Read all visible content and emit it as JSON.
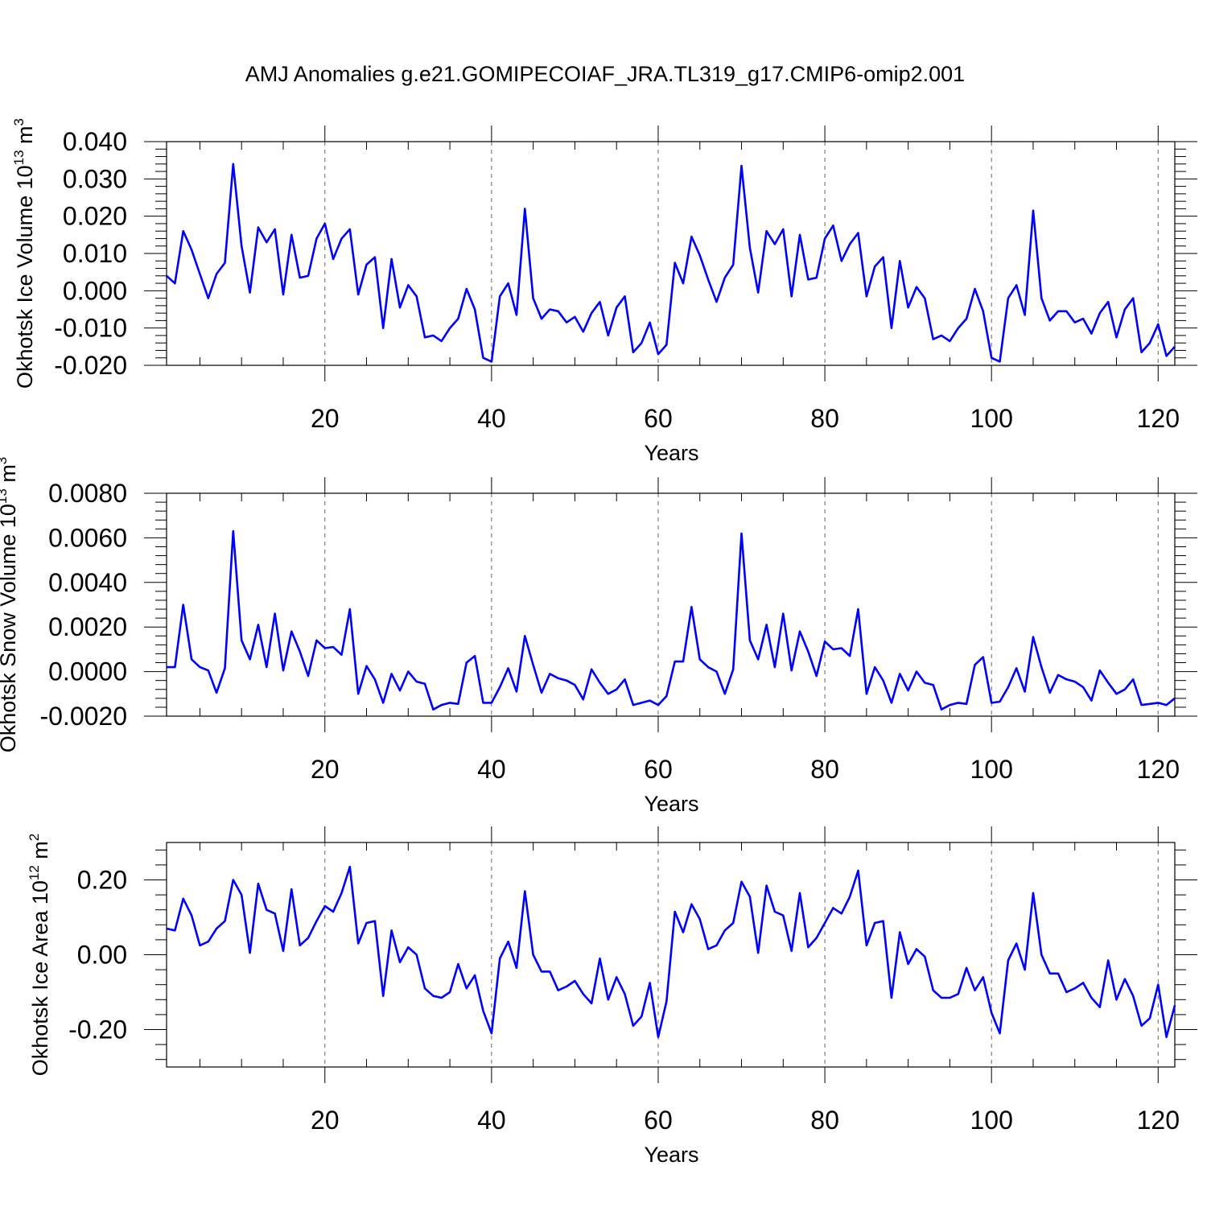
{
  "figure": {
    "title": "AMJ Anomalies g.e21.GOMIPECOIAF_JRA.TL319_g17.CMIP6-omip2.001",
    "line_color": "#0000ff"
  },
  "chart_data": [
    {
      "type": "line",
      "title": "",
      "xlabel": "Years",
      "ylabel": "Okhotsk Ice Volume 10",
      "ylabel_exp": "13",
      "ylabel_unit": " m",
      "ylabel_unit_exp": "3",
      "xlim": [
        1,
        122
      ],
      "ylim": [
        -0.02,
        0.04
      ],
      "xticks": [
        20,
        40,
        60,
        80,
        100,
        120
      ],
      "yticks": [
        -0.02,
        -0.01,
        0.0,
        0.01,
        0.02,
        0.03,
        0.04
      ],
      "ytick_labels": [
        "-0.020",
        "-0.010",
        "0.000",
        "0.010",
        "0.020",
        "0.030",
        "0.040"
      ],
      "series": [
        {
          "name": "Okhotsk Ice Volume",
          "x": [
            1,
            2,
            3,
            4,
            5,
            6,
            7,
            8,
            9,
            10,
            11,
            12,
            13,
            14,
            15,
            16,
            17,
            18,
            19,
            20,
            21,
            22,
            23,
            24,
            25,
            26,
            27,
            28,
            29,
            30,
            31,
            32,
            33,
            34,
            35,
            36,
            37,
            38,
            39,
            40,
            41,
            42,
            43,
            44,
            45,
            46,
            47,
            48,
            49,
            50,
            51,
            52,
            53,
            54,
            55,
            56,
            57,
            58,
            59,
            60,
            61,
            62,
            63,
            64,
            65,
            66,
            67,
            68,
            69,
            70,
            71,
            72,
            73,
            74,
            75,
            76,
            77,
            78,
            79,
            80,
            81,
            82,
            83,
            84,
            85,
            86,
            87,
            88,
            89,
            90,
            91,
            92,
            93,
            94,
            95,
            96,
            97,
            98,
            99,
            100,
            101,
            102,
            103,
            104,
            105,
            106,
            107,
            108,
            109,
            110,
            111,
            112,
            113,
            114,
            115,
            116,
            117,
            118,
            119,
            120,
            121,
            122
          ],
          "values": [
            0.004,
            0.002,
            0.016,
            0.011,
            0.0045,
            -0.002,
            0.0045,
            0.0075,
            0.034,
            0.012,
            -0.0005,
            0.017,
            0.013,
            0.0165,
            -0.001,
            0.015,
            0.0035,
            0.004,
            0.014,
            0.018,
            0.0085,
            0.014,
            0.0165,
            -0.001,
            0.007,
            0.009,
            -0.01,
            0.0085,
            -0.0045,
            0.0015,
            -0.0015,
            -0.0125,
            -0.012,
            -0.0135,
            -0.01,
            -0.0075,
            0.0005,
            -0.005,
            -0.018,
            -0.019,
            -0.0015,
            0.002,
            -0.0065,
            0.022,
            -0.002,
            -0.0075,
            -0.005,
            -0.0055,
            -0.0085,
            -0.007,
            -0.011,
            -0.006,
            -0.003,
            -0.012,
            -0.0045,
            -0.0015,
            -0.0165,
            -0.014,
            -0.0085,
            -0.017,
            -0.0145,
            0.0075,
            0.002,
            0.0145,
            0.0095,
            0.003,
            -0.003,
            0.0035,
            0.007,
            0.0335,
            0.0115,
            -0.0005,
            0.016,
            0.0125,
            0.0165,
            -0.0015,
            0.015,
            0.003,
            0.0035,
            0.014,
            0.0175,
            0.008,
            0.0125,
            0.0155,
            -0.0015,
            0.0065,
            0.009,
            -0.01,
            0.008,
            -0.0045,
            0.001,
            -0.002,
            -0.013,
            -0.012,
            -0.0135,
            -0.01,
            -0.0075,
            0.0005,
            -0.0055,
            -0.018,
            -0.019,
            -0.002,
            0.0015,
            -0.0065,
            0.0215,
            -0.002,
            -0.008,
            -0.0055,
            -0.0055,
            -0.0085,
            -0.0075,
            -0.0115,
            -0.006,
            -0.003,
            -0.0125,
            -0.005,
            -0.002,
            -0.0165,
            -0.014,
            -0.009,
            -0.0175,
            -0.015
          ]
        }
      ]
    },
    {
      "type": "line",
      "title": "",
      "xlabel": "Years",
      "ylabel": "Okhotsk Snow Volume 10",
      "ylabel_exp": "13",
      "ylabel_unit": " m",
      "ylabel_unit_exp": "3",
      "xlim": [
        1,
        122
      ],
      "ylim": [
        -0.002,
        0.008
      ],
      "xticks": [
        20,
        40,
        60,
        80,
        100,
        120
      ],
      "yticks": [
        -0.002,
        0.0,
        0.002,
        0.004,
        0.006,
        0.008
      ],
      "ytick_labels": [
        "-0.0020",
        "0.0000",
        "0.0020",
        "0.0040",
        "0.0060",
        "0.0080"
      ],
      "series": [
        {
          "name": "Okhotsk Snow Volume",
          "x": [
            1,
            2,
            3,
            4,
            5,
            6,
            7,
            8,
            9,
            10,
            11,
            12,
            13,
            14,
            15,
            16,
            17,
            18,
            19,
            20,
            21,
            22,
            23,
            24,
            25,
            26,
            27,
            28,
            29,
            30,
            31,
            32,
            33,
            34,
            35,
            36,
            37,
            38,
            39,
            40,
            41,
            42,
            43,
            44,
            45,
            46,
            47,
            48,
            49,
            50,
            51,
            52,
            53,
            54,
            55,
            56,
            57,
            58,
            59,
            60,
            61,
            62,
            63,
            64,
            65,
            66,
            67,
            68,
            69,
            70,
            71,
            72,
            73,
            74,
            75,
            76,
            77,
            78,
            79,
            80,
            81,
            82,
            83,
            84,
            85,
            86,
            87,
            88,
            89,
            90,
            91,
            92,
            93,
            94,
            95,
            96,
            97,
            98,
            99,
            100,
            101,
            102,
            103,
            104,
            105,
            106,
            107,
            108,
            109,
            110,
            111,
            112,
            113,
            114,
            115,
            116,
            117,
            118,
            119,
            120,
            121,
            122
          ],
          "values": [
            0.0002,
            0.0002,
            0.003,
            0.00055,
            0.0002,
            5e-05,
            -0.00095,
            0.00015,
            0.0063,
            0.0014,
            0.00055,
            0.0021,
            0.0002,
            0.0026,
            5e-05,
            0.0018,
            0.0009,
            -0.0002,
            0.0014,
            0.00105,
            0.0011,
            0.00075,
            0.0028,
            -0.001,
            0.00025,
            -0.00035,
            -0.0014,
            -0.0001,
            -0.00085,
            0.0,
            -0.00045,
            -0.00055,
            -0.0017,
            -0.0015,
            -0.0014,
            -0.00145,
            0.0004,
            0.0007,
            -0.0014,
            -0.0014,
            -0.0007,
            0.00015,
            -0.0009,
            0.0016,
            0.0003,
            -0.00095,
            -0.0001,
            -0.0003,
            -0.0004,
            -0.0006,
            -0.00125,
            0.0001,
            -0.0005,
            -0.001,
            -0.0008,
            -0.00035,
            -0.0015,
            -0.0014,
            -0.0013,
            -0.0015,
            -0.0011,
            0.00045,
            0.00045,
            0.0029,
            0.00055,
            0.0002,
            0.0,
            -0.001,
            0.0001,
            0.0062,
            0.0014,
            0.00055,
            0.0021,
            0.0002,
            0.0026,
            5e-05,
            0.0018,
            0.0009,
            -0.0002,
            0.00135,
            0.001,
            0.00105,
            0.0007,
            0.0028,
            -0.001,
            0.0002,
            -0.0004,
            -0.0014,
            -0.0001,
            -0.00085,
            0.0,
            -0.0005,
            -0.0006,
            -0.0017,
            -0.0015,
            -0.0014,
            -0.00145,
            0.0003,
            0.00065,
            -0.0014,
            -0.00135,
            -0.0007,
            0.00015,
            -0.0009,
            0.00155,
            0.0002,
            -0.00095,
            -0.00015,
            -0.00035,
            -0.00045,
            -0.0007,
            -0.0013,
            5e-05,
            -0.0005,
            -0.001,
            -0.0008,
            -0.00035,
            -0.0015,
            -0.00145,
            -0.0014,
            -0.0015,
            -0.0012
          ]
        }
      ]
    },
    {
      "type": "line",
      "title": "",
      "xlabel": "Years",
      "ylabel": "Okhotsk Ice Area 10",
      "ylabel_exp": "12",
      "ylabel_unit": " m",
      "ylabel_unit_exp": "2",
      "xlim": [
        1,
        122
      ],
      "ylim": [
        -0.3,
        0.3
      ],
      "xticks": [
        20,
        40,
        60,
        80,
        100,
        120
      ],
      "yticks": [
        -0.2,
        0.0,
        0.2
      ],
      "ytick_labels": [
        "-0.20",
        "0.00",
        "0.20"
      ],
      "series": [
        {
          "name": "Okhotsk Ice Area",
          "x": [
            1,
            2,
            3,
            4,
            5,
            6,
            7,
            8,
            9,
            10,
            11,
            12,
            13,
            14,
            15,
            16,
            17,
            18,
            19,
            20,
            21,
            22,
            23,
            24,
            25,
            26,
            27,
            28,
            29,
            30,
            31,
            32,
            33,
            34,
            35,
            36,
            37,
            38,
            39,
            40,
            41,
            42,
            43,
            44,
            45,
            46,
            47,
            48,
            49,
            50,
            51,
            52,
            53,
            54,
            55,
            56,
            57,
            58,
            59,
            60,
            61,
            62,
            63,
            64,
            65,
            66,
            67,
            68,
            69,
            70,
            71,
            72,
            73,
            74,
            75,
            76,
            77,
            78,
            79,
            80,
            81,
            82,
            83,
            84,
            85,
            86,
            87,
            88,
            89,
            90,
            91,
            92,
            93,
            94,
            95,
            96,
            97,
            98,
            99,
            100,
            101,
            102,
            103,
            104,
            105,
            106,
            107,
            108,
            109,
            110,
            111,
            112,
            113,
            114,
            115,
            116,
            117,
            118,
            119,
            120,
            121,
            122
          ],
          "values": [
            0.07,
            0.065,
            0.15,
            0.105,
            0.025,
            0.035,
            0.07,
            0.09,
            0.2,
            0.16,
            0.005,
            0.19,
            0.12,
            0.11,
            0.01,
            0.175,
            0.025,
            0.045,
            0.09,
            0.13,
            0.115,
            0.165,
            0.235,
            0.03,
            0.085,
            0.09,
            -0.11,
            0.065,
            -0.02,
            0.02,
            0.0,
            -0.09,
            -0.11,
            -0.115,
            -0.1,
            -0.025,
            -0.09,
            -0.055,
            -0.15,
            -0.21,
            -0.01,
            0.035,
            -0.035,
            0.17,
            0.0,
            -0.045,
            -0.045,
            -0.095,
            -0.085,
            -0.07,
            -0.105,
            -0.13,
            -0.01,
            -0.12,
            -0.06,
            -0.105,
            -0.19,
            -0.165,
            -0.075,
            -0.22,
            -0.125,
            0.115,
            0.06,
            0.135,
            0.095,
            0.015,
            0.025,
            0.065,
            0.085,
            0.195,
            0.155,
            0.005,
            0.185,
            0.115,
            0.105,
            0.01,
            0.165,
            0.02,
            0.045,
            0.085,
            0.125,
            0.11,
            0.155,
            0.225,
            0.025,
            0.085,
            0.09,
            -0.115,
            0.06,
            -0.025,
            0.015,
            -0.005,
            -0.095,
            -0.115,
            -0.115,
            -0.105,
            -0.035,
            -0.095,
            -0.06,
            -0.155,
            -0.21,
            -0.015,
            0.03,
            -0.04,
            0.165,
            0.0,
            -0.05,
            -0.05,
            -0.1,
            -0.09,
            -0.075,
            -0.115,
            -0.14,
            -0.015,
            -0.12,
            -0.065,
            -0.11,
            -0.19,
            -0.17,
            -0.08,
            -0.22,
            -0.135
          ]
        }
      ]
    }
  ]
}
